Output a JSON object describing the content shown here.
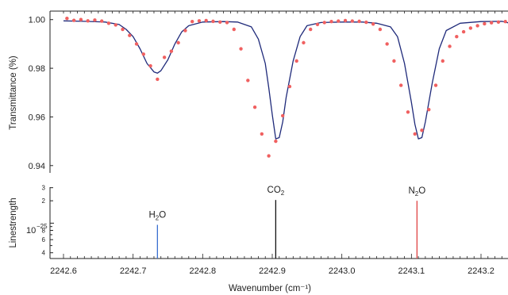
{
  "chart_data": [
    {
      "type": "line",
      "panel": "transmittance",
      "ylabel": "Transmittance (%)",
      "ylim": [
        0.937,
        1.0035
      ],
      "xlim": [
        2242.6,
        2243.25
      ],
      "yticks": [
        "0.94",
        "0.96",
        "0.98",
        "1.00"
      ],
      "ytick_values": [
        0.94,
        0.96,
        0.98,
        1.0
      ],
      "grid": false,
      "series": [
        {
          "mode": "line",
          "color": "#1f2a7a",
          "x": [
            2242.6,
            2242.63,
            2242.66,
            2242.68,
            2242.69,
            2242.7,
            2242.71,
            2242.72,
            2242.73,
            2242.735,
            2242.74,
            2242.75,
            2242.76,
            2242.77,
            2242.78,
            2242.8,
            2242.83,
            2242.85,
            2242.87,
            2242.88,
            2242.89,
            2242.895,
            2242.9,
            2242.905,
            2242.91,
            2242.915,
            2242.92,
            2242.93,
            2242.94,
            2242.95,
            2242.97,
            2243.0,
            2243.03,
            2243.05,
            2243.07,
            2243.08,
            2243.09,
            2243.1,
            2243.105,
            2243.11,
            2243.115,
            2243.12,
            2243.13,
            2243.14,
            2243.15,
            2243.17,
            2243.2,
            2243.23,
            2243.25
          ],
          "y": [
            0.9995,
            0.9993,
            0.999,
            0.998,
            0.996,
            0.993,
            0.988,
            0.982,
            0.9785,
            0.978,
            0.979,
            0.9835,
            0.99,
            0.995,
            0.9975,
            0.999,
            0.9992,
            0.999,
            0.997,
            0.992,
            0.982,
            0.972,
            0.961,
            0.951,
            0.9515,
            0.958,
            0.968,
            0.983,
            0.993,
            0.9975,
            0.9988,
            0.999,
            0.999,
            0.9985,
            0.997,
            0.993,
            0.982,
            0.966,
            0.957,
            0.951,
            0.9515,
            0.958,
            0.974,
            0.988,
            0.9955,
            0.9985,
            0.9992,
            0.9993,
            0.998
          ]
        },
        {
          "mode": "scatter",
          "color": "#f06060",
          "x": [
            2242.605,
            2242.615,
            2242.625,
            2242.635,
            2242.645,
            2242.655,
            2242.665,
            2242.675,
            2242.685,
            2242.695,
            2242.705,
            2242.715,
            2242.725,
            2242.735,
            2242.745,
            2242.755,
            2242.765,
            2242.775,
            2242.785,
            2242.795,
            2242.805,
            2242.815,
            2242.825,
            2242.835,
            2242.845,
            2242.855,
            2242.865,
            2242.875,
            2242.885,
            2242.895,
            2242.905,
            2242.915,
            2242.925,
            2242.935,
            2242.945,
            2242.955,
            2242.965,
            2242.975,
            2242.985,
            2242.995,
            2243.005,
            2243.015,
            2243.025,
            2243.035,
            2243.045,
            2243.055,
            2243.065,
            2243.075,
            2243.085,
            2243.095,
            2243.105,
            2243.115,
            2243.125,
            2243.135,
            2243.145,
            2243.155,
            2243.165,
            2243.175,
            2243.185,
            2243.195,
            2243.205,
            2243.215,
            2243.225,
            2243.235,
            2243.245
          ],
          "y": [
            1.0005,
            0.9997,
            1.0,
            0.9995,
            0.9998,
            0.9994,
            0.9985,
            0.9978,
            0.996,
            0.9935,
            0.99,
            0.9858,
            0.981,
            0.9755,
            0.9845,
            0.987,
            0.9905,
            0.9955,
            0.9992,
            0.9995,
            0.9996,
            0.9993,
            0.999,
            0.9988,
            0.996,
            0.988,
            0.975,
            0.964,
            0.953,
            0.944,
            0.95,
            0.9605,
            0.9725,
            0.983,
            0.9905,
            0.996,
            0.998,
            0.9988,
            0.9992,
            0.9994,
            0.9996,
            0.9994,
            0.9993,
            0.9989,
            0.9982,
            0.996,
            0.99,
            0.983,
            0.973,
            0.962,
            0.953,
            0.9545,
            0.963,
            0.973,
            0.983,
            0.989,
            0.993,
            0.995,
            0.9965,
            0.9975,
            0.9983,
            0.9987,
            0.999,
            0.9992,
            0.9994
          ]
        }
      ]
    },
    {
      "type": "bar",
      "panel": "linestrength",
      "ylabel": "Linestrength",
      "xlabel": "Wavenumber (cm⁻¹)",
      "xlim": [
        2242.6,
        2243.25
      ],
      "scale": "log",
      "ylim": [
        3.6e-26,
        3.05e-25
      ],
      "xticks": [
        "2242.6",
        "2242.7",
        "2242.8",
        "2242.9",
        "2243.0",
        "2243.1",
        "2243.2"
      ],
      "xtick_values": [
        2242.6,
        2242.7,
        2242.8,
        2242.9,
        2243.0,
        2243.1,
        2243.2
      ],
      "ytick_major_label": "10",
      "ytick_major_exponent": "−25",
      "yticks": [
        "4",
        "6",
        "8",
        "2",
        "3"
      ],
      "ytick_values": [
        4e-26,
        6e-26,
        8e-26,
        2e-25,
        3e-25
      ],
      "grid": false,
      "lines": [
        {
          "species": "H",
          "sub": "2",
          "tail": "O",
          "x": 2242.735,
          "strength": 9.5e-26,
          "color": "#3a6fd0"
        },
        {
          "species": "CO",
          "sub": "2",
          "tail": "",
          "x": 2242.905,
          "strength": 2.05e-25,
          "color": "#111111"
        },
        {
          "species": "N",
          "sub": "2",
          "tail": "O",
          "x": 2243.108,
          "strength": 2e-25,
          "color": "#e04545"
        }
      ]
    }
  ]
}
